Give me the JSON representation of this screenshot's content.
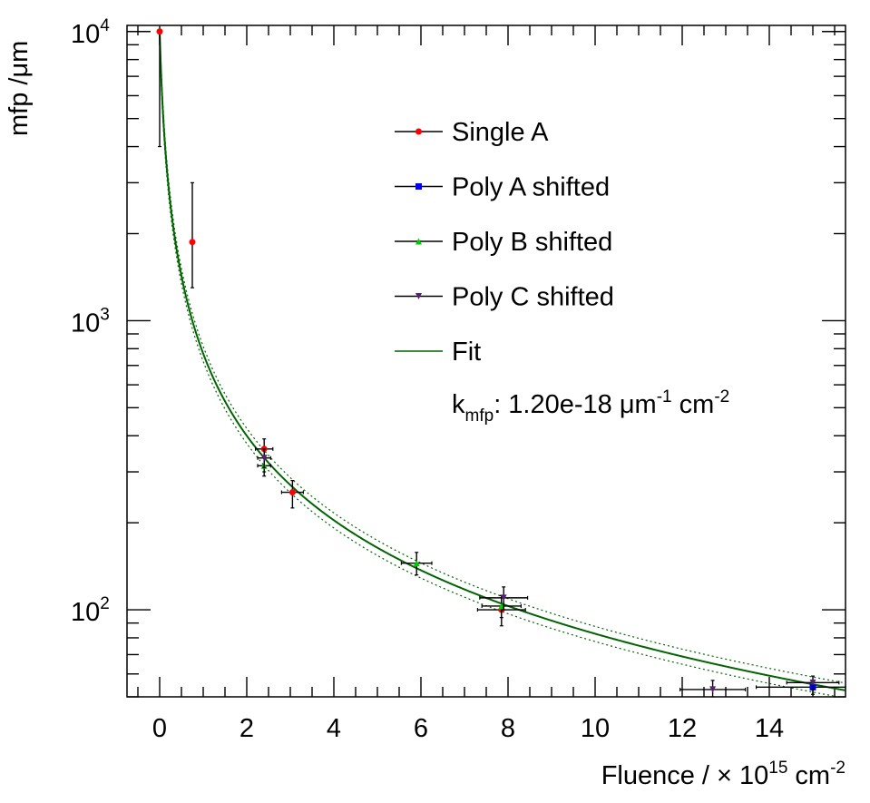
{
  "chart_data": {
    "type": "scatter",
    "xlabel": "Fluence / × 10",
    "xlabel_exponent": "15",
    "xlabel_unit": "cm",
    "xlabel_unit_exponent": "-2",
    "ylabel": "mfp /μm",
    "x_scale": "linear",
    "y_scale": "log",
    "xlim": [
      -0.75,
      15.75
    ],
    "ylim": [
      50,
      10500
    ],
    "x_ticks": [
      0,
      2,
      4,
      6,
      8,
      10,
      12,
      14
    ],
    "x_tick_labels": [
      "0",
      "2",
      "4",
      "6",
      "8",
      "10",
      "12",
      "14"
    ],
    "y_ticks": [
      100,
      1000,
      10000
    ],
    "y_tick_labels": [
      {
        "base": "10",
        "exp": "2"
      },
      {
        "base": "10",
        "exp": "3"
      },
      {
        "base": "10",
        "exp": "4"
      }
    ],
    "grid": false,
    "legend_position": "top-right",
    "series": [
      {
        "name": "Single A",
        "marker": "circle",
        "color": "#ff0000",
        "points": [
          {
            "x": 0.0,
            "y": 10000,
            "xerr": 0,
            "ylo": 4000,
            "yhi": 10000
          },
          {
            "x": 0.75,
            "y": 1870,
            "xerr": 0,
            "ylo": 1300,
            "yhi": 3000
          },
          {
            "x": 2.4,
            "y": 360,
            "xerr": 0.2,
            "ylo": 300,
            "yhi": 390
          },
          {
            "x": 3.05,
            "y": 255,
            "xerr": 0.25,
            "ylo": 225,
            "yhi": 280
          },
          {
            "x": 7.85,
            "y": 100,
            "xerr": 0.55,
            "ylo": 88,
            "yhi": 112
          }
        ]
      },
      {
        "name": "Poly A shifted",
        "marker": "square",
        "color": "#0000ff",
        "points": [
          {
            "x": 15.0,
            "y": 54,
            "xerr": 1.3,
            "ylo": 51,
            "yhi": 57
          }
        ]
      },
      {
        "name": "Poly B shifted",
        "marker": "triangle-up",
        "color": "#00cc00",
        "points": [
          {
            "x": 2.4,
            "y": 315,
            "xerr": 0.15,
            "ylo": 290,
            "yhi": 340
          },
          {
            "x": 5.9,
            "y": 145,
            "xerr": 0.35,
            "ylo": 132,
            "yhi": 158
          },
          {
            "x": 7.85,
            "y": 103,
            "xerr": 0.45,
            "ylo": 94,
            "yhi": 112
          }
        ]
      },
      {
        "name": "Poly C shifted",
        "marker": "triangle-down",
        "color": "#5a1f6e",
        "points": [
          {
            "x": 2.4,
            "y": 335,
            "xerr": 0.15,
            "ylo": 310,
            "yhi": 360
          },
          {
            "x": 7.9,
            "y": 110,
            "xerr": 0.55,
            "ylo": 100,
            "yhi": 120
          },
          {
            "x": 12.7,
            "y": 53,
            "xerr": 0.75,
            "ylo": 50,
            "yhi": 57
          },
          {
            "x": 15.0,
            "y": 56,
            "xerr": 0.6,
            "ylo": 53,
            "yhi": 59
          }
        ]
      }
    ],
    "fit": {
      "name": "Fit",
      "formula": "mfp = 1 / (1e-4 + k_mfp * 1e15 * x)",
      "k_mfp": 1.2e-18,
      "band_factor": 0.06,
      "color": "#006400"
    },
    "annotation": {
      "prefix": "k",
      "subscript": "mfp",
      "value": ": 1.20e-18 μm",
      "unit_exp1": "-1",
      "unit_mid": " cm",
      "unit_exp2": "-2"
    }
  }
}
